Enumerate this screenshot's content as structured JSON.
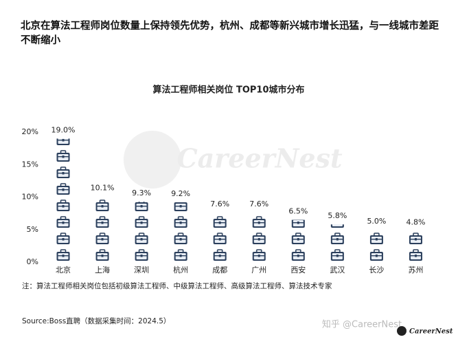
{
  "headline": "北京在算法工程师岗位数量上保持领先优势，杭州、成都等新兴城市增长迅猛，与一线城市差距不断缩小",
  "chart_data": {
    "type": "pictogram",
    "title": "算法工程师相关岗位 TOP10城市分布",
    "categories": [
      "北京",
      "上海",
      "深圳",
      "杭州",
      "成都",
      "广州",
      "西安",
      "武汉",
      "长沙",
      "苏州"
    ],
    "values": [
      19.0,
      10.1,
      9.3,
      9.2,
      7.6,
      7.6,
      6.5,
      5.8,
      5.0,
      4.8
    ],
    "value_labels": [
      "19.0%",
      "10.1%",
      "9.3%",
      "9.2%",
      "7.6%",
      "7.6%",
      "6.5%",
      "5.8%",
      "5.0%",
      "4.8%"
    ],
    "color": "#2b3f5c",
    "ylim": [
      0,
      20
    ],
    "yticks": [
      {
        "value": 0,
        "label": "0%"
      },
      {
        "value": 5,
        "label": "5%"
      },
      {
        "value": 10,
        "label": "10%"
      },
      {
        "value": 15,
        "label": "15%"
      },
      {
        "value": 20,
        "label": "20%"
      }
    ]
  },
  "note": "注：算法工程师相关岗位包括初级算法工程师、中级算法工程师、高级算法工程师、算法技术专家",
  "source": "Source:Boss直聘（数据采集时间：2024.5）",
  "watermark": "CareerNest",
  "footer": {
    "platform": "知乎 @CareerNest",
    "brand": "CareerNest"
  }
}
